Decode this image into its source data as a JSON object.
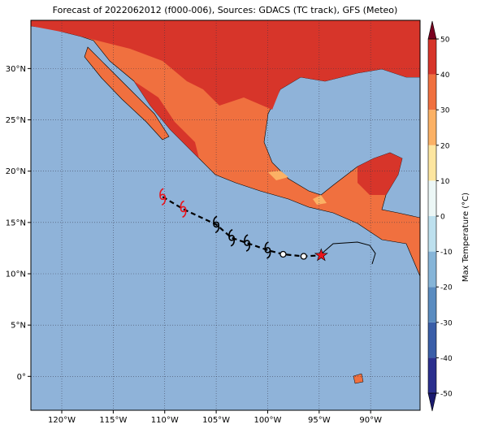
{
  "chart_data": {
    "type": "map",
    "title": "Forecast of 2022062012 (f000-006), Sources: GDACS (TC track), GFS (Meteo)",
    "xlim": [
      -123,
      -85.2
    ],
    "ylim": [
      -3.3,
      34.7
    ],
    "xticks": [
      {
        "value": -120,
        "label": "120°W"
      },
      {
        "value": -115,
        "label": "115°W"
      },
      {
        "value": -110,
        "label": "110°W"
      },
      {
        "value": -105,
        "label": "105°W"
      },
      {
        "value": -100,
        "label": "100°W"
      },
      {
        "value": -95,
        "label": "95°W"
      },
      {
        "value": -90,
        "label": "90°W"
      }
    ],
    "yticks": [
      {
        "value": 0,
        "label": "0°"
      },
      {
        "value": 5,
        "label": "5°N"
      },
      {
        "value": 10,
        "label": "10°N"
      },
      {
        "value": 15,
        "label": "15°N"
      },
      {
        "value": 20,
        "label": "20°N"
      },
      {
        "value": 25,
        "label": "25°N"
      },
      {
        "value": 30,
        "label": "30°N"
      }
    ],
    "grid": true,
    "track": {
      "lon": [
        -110.2,
        -108.2,
        -105,
        -103.5,
        -102,
        -100,
        -98.5,
        -96.5,
        -94.8
      ],
      "lat": [
        17.5,
        16.3,
        14.8,
        13.5,
        13,
        12.3,
        11.9,
        11.7,
        11.8
      ],
      "markers": [
        "storm",
        "storm",
        "storm",
        "storm",
        "storm",
        "storm",
        "circle",
        "circle",
        "star"
      ],
      "colors": [
        "#e8141c",
        "#e8141c",
        "#000000",
        "#000000",
        "#000000",
        "#000000",
        "#000000",
        "#000000",
        "#e8141c"
      ]
    },
    "colorbar": {
      "label": "Max Temperature (°C)",
      "lim": [
        -50,
        50
      ],
      "ticks": [
        -50,
        -40,
        -30,
        -20,
        -10,
        0,
        10,
        20,
        30,
        40,
        50
      ],
      "colors": [
        "#2b2f8e",
        "#3a5ea8",
        "#5a8cc0",
        "#86b5d8",
        "#bde0ee",
        "#ecf7f6",
        "#fde6a0",
        "#fbb165",
        "#f0703f",
        "#d7352a",
        "#a50026"
      ],
      "under_color": "#1a1a6e",
      "over_color": "#7a0020"
    }
  }
}
